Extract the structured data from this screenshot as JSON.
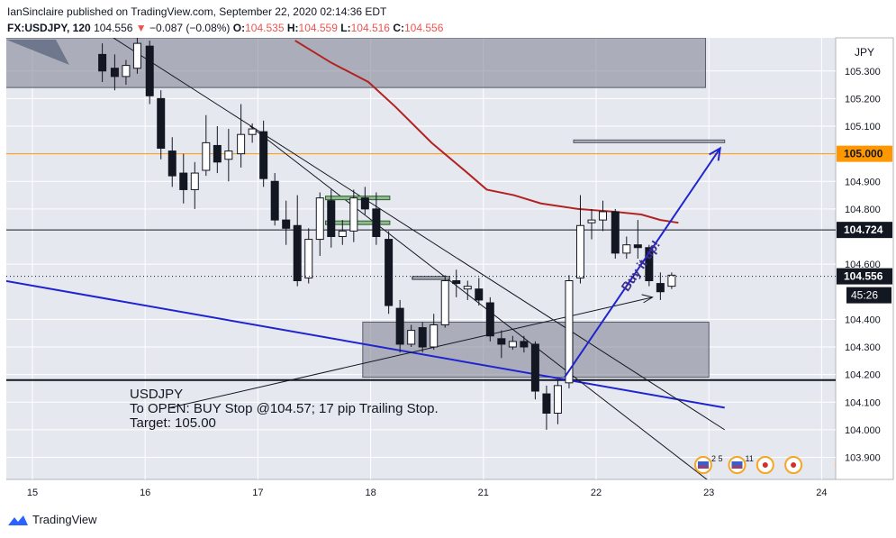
{
  "header": {
    "published": "IanSinclaire published on TradingView.com, September 22, 2020 02:14:36 EDT",
    "symbol": "FX:USDJPY, 120",
    "last": "104.556",
    "change": "−0.087 (−0.08%)",
    "o_label": "O:",
    "o": "104.535",
    "h_label": "H:",
    "h": "104.559",
    "l_label": "L:",
    "l": "104.516",
    "c_label": "C:",
    "c": "104.556"
  },
  "footer": {
    "brand": "TradingView"
  },
  "colors": {
    "plot_bg": "#e6e8ef",
    "zone": "#8c8f9c",
    "ma": "#b22222",
    "trendline": "#1f24d0",
    "target_line": "#ff9800",
    "arrow": "#1f24d0",
    "annotation_text": "#3a2a8a",
    "green_level": "#8fb98f"
  },
  "chart_data": {
    "type": "candlestick",
    "currency": "JPY",
    "x_ticks": [
      "15",
      "16",
      "17",
      "18",
      "21",
      "22",
      "23",
      "24"
    ],
    "y_ticks": [
      "103.900",
      "104.000",
      "104.100",
      "104.200",
      "104.300",
      "104.400",
      "104.600",
      "104.800",
      "104.900",
      "105.100",
      "105.200",
      "105.300"
    ],
    "ylim": [
      103.82,
      105.42
    ],
    "price_labels": {
      "target": "105.000",
      "level": "104.724",
      "last": "104.556",
      "countdown": "45:26"
    },
    "candles": [
      {
        "x": 14.24,
        "o": 105.41,
        "h": 105.43,
        "l": 105.32,
        "c": 105.38
      },
      {
        "x": 15.62,
        "o": 105.36,
        "h": 105.4,
        "l": 105.26,
        "c": 105.3
      },
      {
        "x": 15.73,
        "o": 105.31,
        "h": 105.36,
        "l": 105.23,
        "c": 105.28
      },
      {
        "x": 15.83,
        "o": 105.28,
        "h": 105.34,
        "l": 105.25,
        "c": 105.32
      },
      {
        "x": 15.93,
        "o": 105.31,
        "h": 105.42,
        "l": 105.29,
        "c": 105.4
      },
      {
        "x": 16.04,
        "o": 105.39,
        "h": 105.41,
        "l": 105.18,
        "c": 105.21
      },
      {
        "x": 16.14,
        "o": 105.2,
        "h": 105.23,
        "l": 104.98,
        "c": 105.02
      },
      {
        "x": 16.24,
        "o": 105.01,
        "h": 105.06,
        "l": 104.88,
        "c": 104.92
      },
      {
        "x": 16.34,
        "o": 104.93,
        "h": 105.0,
        "l": 104.82,
        "c": 104.87
      },
      {
        "x": 16.44,
        "o": 104.87,
        "h": 104.97,
        "l": 104.8,
        "c": 104.93
      },
      {
        "x": 16.54,
        "o": 104.94,
        "h": 105.14,
        "l": 104.92,
        "c": 105.04
      },
      {
        "x": 16.64,
        "o": 105.03,
        "h": 105.1,
        "l": 104.93,
        "c": 104.97
      },
      {
        "x": 16.74,
        "o": 104.98,
        "h": 105.09,
        "l": 104.9,
        "c": 105.01
      },
      {
        "x": 16.85,
        "o": 105.0,
        "h": 105.18,
        "l": 104.95,
        "c": 105.07
      },
      {
        "x": 16.95,
        "o": 105.07,
        "h": 105.11,
        "l": 105.04,
        "c": 105.09
      },
      {
        "x": 17.05,
        "o": 105.08,
        "h": 105.12,
        "l": 104.88,
        "c": 104.91
      },
      {
        "x": 17.15,
        "o": 104.9,
        "h": 104.93,
        "l": 104.74,
        "c": 104.76
      },
      {
        "x": 17.25,
        "o": 104.76,
        "h": 104.83,
        "l": 104.67,
        "c": 104.73
      },
      {
        "x": 17.35,
        "o": 104.74,
        "h": 104.85,
        "l": 104.52,
        "c": 104.54
      },
      {
        "x": 17.45,
        "o": 104.55,
        "h": 104.73,
        "l": 104.53,
        "c": 104.69
      },
      {
        "x": 17.55,
        "o": 104.69,
        "h": 104.86,
        "l": 104.63,
        "c": 104.84
      },
      {
        "x": 17.65,
        "o": 104.83,
        "h": 104.87,
        "l": 104.66,
        "c": 104.7
      },
      {
        "x": 17.75,
        "o": 104.7,
        "h": 104.76,
        "l": 104.67,
        "c": 104.72
      },
      {
        "x": 17.85,
        "o": 104.72,
        "h": 104.87,
        "l": 104.68,
        "c": 104.84
      },
      {
        "x": 17.95,
        "o": 104.84,
        "h": 104.88,
        "l": 104.78,
        "c": 104.8
      },
      {
        "x": 18.05,
        "o": 104.8,
        "h": 104.86,
        "l": 104.67,
        "c": 104.7
      },
      {
        "x": 18.16,
        "o": 104.69,
        "h": 104.72,
        "l": 104.42,
        "c": 104.45
      },
      {
        "x": 18.26,
        "o": 104.44,
        "h": 104.47,
        "l": 104.28,
        "c": 104.31
      },
      {
        "x": 18.36,
        "o": 104.31,
        "h": 104.38,
        "l": 104.3,
        "c": 104.36
      },
      {
        "x": 18.46,
        "o": 104.37,
        "h": 104.39,
        "l": 104.28,
        "c": 104.3
      },
      {
        "x": 18.56,
        "o": 104.3,
        "h": 104.42,
        "l": 104.29,
        "c": 104.38
      },
      {
        "x": 18.66,
        "o": 104.38,
        "h": 104.56,
        "l": 104.37,
        "c": 104.54
      },
      {
        "x": 18.76,
        "o": 104.54,
        "h": 104.58,
        "l": 104.48,
        "c": 104.53
      },
      {
        "x": 18.86,
        "o": 104.51,
        "h": 104.54,
        "l": 104.47,
        "c": 104.52
      },
      {
        "x": 18.96,
        "o": 104.51,
        "h": 104.55,
        "l": 104.45,
        "c": 104.47
      },
      {
        "x": 19.06,
        "o": 104.46,
        "h": 104.48,
        "l": 104.32,
        "c": 104.34
      },
      {
        "x": 19.16,
        "o": 104.33,
        "h": 104.36,
        "l": 104.26,
        "c": 104.31
      },
      {
        "x": 19.26,
        "o": 104.3,
        "h": 104.34,
        "l": 104.29,
        "c": 104.32
      },
      {
        "x": 19.36,
        "o": 104.32,
        "h": 104.34,
        "l": 104.28,
        "c": 104.3
      },
      {
        "x": 19.46,
        "o": 104.31,
        "h": 104.32,
        "l": 104.11,
        "c": 104.14
      },
      {
        "x": 19.56,
        "o": 104.13,
        "h": 104.16,
        "l": 104.0,
        "c": 104.06
      },
      {
        "x": 19.66,
        "o": 104.06,
        "h": 104.18,
        "l": 104.02,
        "c": 104.16
      },
      {
        "x": 19.76,
        "o": 104.17,
        "h": 104.56,
        "l": 104.15,
        "c": 104.54
      },
      {
        "x": 19.86,
        "o": 104.55,
        "h": 104.85,
        "l": 104.53,
        "c": 104.74
      },
      {
        "x": 19.96,
        "o": 104.75,
        "h": 104.8,
        "l": 104.69,
        "c": 104.76
      },
      {
        "x": 20.06,
        "o": 104.76,
        "h": 104.83,
        "l": 104.72,
        "c": 104.79
      },
      {
        "x": 20.17,
        "o": 104.79,
        "h": 104.8,
        "l": 104.62,
        "c": 104.64
      },
      {
        "x": 20.27,
        "o": 104.64,
        "h": 104.7,
        "l": 104.62,
        "c": 104.67
      },
      {
        "x": 20.37,
        "o": 104.67,
        "h": 104.76,
        "l": 104.62,
        "c": 104.66
      },
      {
        "x": 20.47,
        "o": 104.66,
        "h": 104.67,
        "l": 104.52,
        "c": 104.54
      },
      {
        "x": 20.57,
        "o": 104.53,
        "h": 104.57,
        "l": 104.47,
        "c": 104.5
      },
      {
        "x": 20.67,
        "o": 104.52,
        "h": 104.57,
        "l": 104.51,
        "c": 104.56
      }
    ],
    "moving_average": [
      {
        "x": 17.33,
        "y": 105.41
      },
      {
        "x": 17.65,
        "y": 105.33
      },
      {
        "x": 17.98,
        "y": 105.26
      },
      {
        "x": 18.22,
        "y": 105.17
      },
      {
        "x": 18.54,
        "y": 105.04
      },
      {
        "x": 18.86,
        "y": 104.93
      },
      {
        "x": 19.03,
        "y": 104.87
      },
      {
        "x": 19.27,
        "y": 104.85
      },
      {
        "x": 19.51,
        "y": 104.82
      },
      {
        "x": 19.84,
        "y": 104.8
      },
      {
        "x": 20.16,
        "y": 104.79
      },
      {
        "x": 20.4,
        "y": 104.78
      },
      {
        "x": 20.57,
        "y": 104.76
      },
      {
        "x": 20.73,
        "y": 104.75
      }
    ],
    "zones": [
      {
        "x0": 13.78,
        "x1": 20.97,
        "y0": 105.24,
        "y1": 105.42
      },
      {
        "x0": 17.93,
        "x1": 21.0,
        "y0": 104.19,
        "y1": 104.39
      },
      {
        "x0": 19.8,
        "x1": 21.14,
        "y0": 105.04,
        "y1": 105.05
      }
    ],
    "horizontal_levels": [
      {
        "y": 105.0,
        "role": "target"
      },
      {
        "y": 104.724,
        "role": "level"
      },
      {
        "y": 104.18,
        "role": "support"
      }
    ],
    "trendlines": [
      {
        "x0": 13.78,
        "y0": 104.61,
        "x1": 21.14,
        "y1": 104.08,
        "role": "blue-trend"
      },
      {
        "x0": 15.68,
        "y0": 105.43,
        "x1": 21.14,
        "y1": 104.0,
        "role": "black-trend-1"
      },
      {
        "x0": 16.93,
        "y0": 105.1,
        "x1": 21.14,
        "y1": 103.77,
        "role": "black-trend-2"
      },
      {
        "x0": 16.22,
        "y0": 104.08,
        "x1": 20.5,
        "y1": 104.48,
        "role": "black-trend-3"
      }
    ],
    "green_levels": [
      {
        "x0": 17.6,
        "x1": 18.17,
        "y": 104.84
      },
      {
        "x0": 17.6,
        "x1": 18.17,
        "y": 104.75
      }
    ],
    "small_levels": [
      {
        "x0": 18.37,
        "x1": 18.7,
        "y": 104.55
      }
    ],
    "target_arrow": {
      "x0": 19.72,
      "y0": 104.19,
      "x1": 21.1,
      "y1": 105.02
    },
    "annotations": {
      "arrow_label": "Buy it up!",
      "note_title": "USDJPY",
      "note_line1": "To OPEN: BUY Stop @104.57; 17 pip Trailing Stop.",
      "note_line2": "Target: 105.00"
    },
    "events": [
      {
        "x": 20.95,
        "label": "2 5"
      },
      {
        "x": 21.25,
        "label": "11"
      },
      {
        "x": 22.2,
        "label": "5 20"
      }
    ]
  }
}
